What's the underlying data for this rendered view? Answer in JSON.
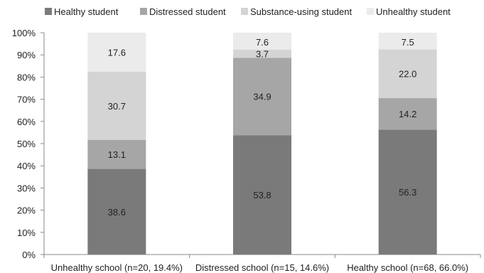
{
  "chart_data": {
    "type": "bar",
    "stacked": true,
    "percent": true,
    "categories": [
      "Unhealthy school (n=20, 19.4%)",
      "Distressed school (n=15, 14.6%)",
      "Healthy school (n=68, 66.0%)"
    ],
    "series": [
      {
        "name": "Healthy student",
        "values": [
          38.6,
          53.8,
          56.3
        ],
        "color": "#7a7a7a"
      },
      {
        "name": "Distressed student",
        "values": [
          13.1,
          34.9,
          14.2
        ],
        "color": "#a6a6a6"
      },
      {
        "name": "Substance-using student",
        "values": [
          30.7,
          3.7,
          22.0
        ],
        "color": "#d4d4d4"
      },
      {
        "name": "Unhealthy student",
        "values": [
          17.6,
          7.6,
          7.5
        ],
        "color": "#ebebeb"
      }
    ],
    "y_ticks": [
      "0%",
      "10%",
      "20%",
      "30%",
      "40%",
      "50%",
      "60%",
      "70%",
      "80%",
      "90%",
      "100%"
    ],
    "ylim": [
      0,
      100
    ],
    "legend_position": "top",
    "grid": false,
    "title": "",
    "xlabel": "",
    "ylabel": ""
  }
}
